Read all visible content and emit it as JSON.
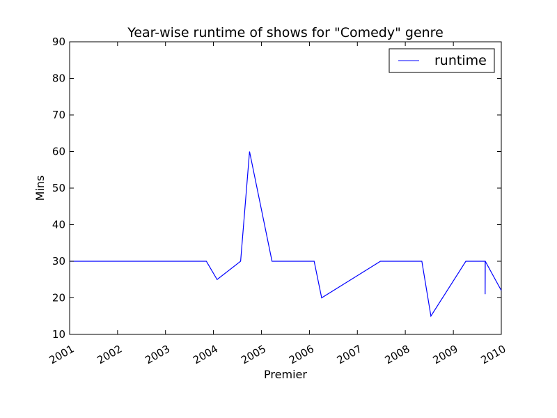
{
  "chart_data": {
    "type": "line",
    "title": "Year-wise runtime of shows for \"Comedy\" genre",
    "xlabel": "Premier",
    "ylabel": "Mins",
    "xlim": [
      "2001-01-01",
      "2010-01-01"
    ],
    "ylim": [
      10,
      90
    ],
    "x_ticks": [
      "2001",
      "2002",
      "2003",
      "2004",
      "2005",
      "2006",
      "2007",
      "2008",
      "2009",
      "2010"
    ],
    "y_ticks": [
      10,
      20,
      30,
      40,
      50,
      60,
      70,
      80,
      90
    ],
    "grid": false,
    "legend_position": "top-right",
    "series": [
      {
        "name": "runtime",
        "color": "#0000ff",
        "points": [
          {
            "x": "2001-01-01",
            "y": 30
          },
          {
            "x": "2003-11-08",
            "y": 30
          },
          {
            "x": "2004-01-29",
            "y": 25
          },
          {
            "x": "2004-07-26",
            "y": 30
          },
          {
            "x": "2004-10-02",
            "y": 60
          },
          {
            "x": "2005-03-22",
            "y": 30
          },
          {
            "x": "2006-02-06",
            "y": 30
          },
          {
            "x": "2006-04-04",
            "y": 20
          },
          {
            "x": "2007-06-26",
            "y": 30
          },
          {
            "x": "2008-05-06",
            "y": 30
          },
          {
            "x": "2008-07-14",
            "y": 15
          },
          {
            "x": "2009-04-06",
            "y": 30
          },
          {
            "x": "2009-08-31",
            "y": 30
          },
          {
            "x": "2009-08-31",
            "y": 21
          },
          {
            "x": "2009-09-01",
            "y": 30
          },
          {
            "x": "2010-01-01",
            "y": 22
          }
        ]
      }
    ]
  }
}
